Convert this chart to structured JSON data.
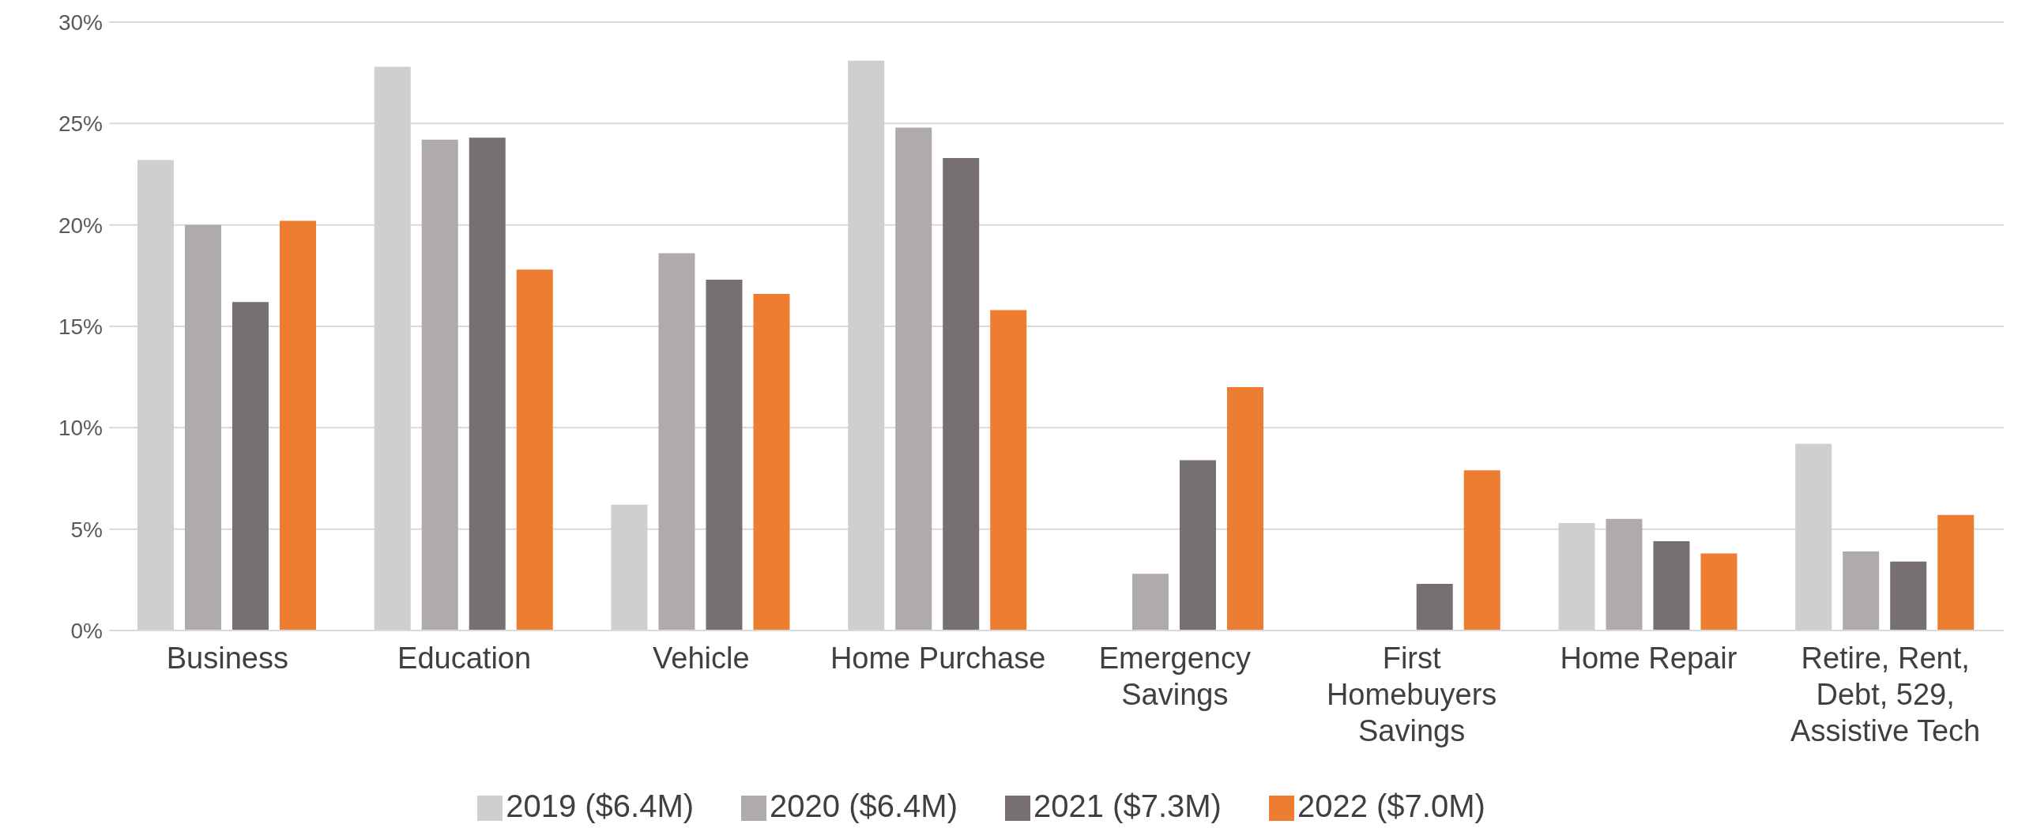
{
  "chart_data": {
    "type": "bar",
    "categories": [
      "Business",
      "Education",
      "Vehicle",
      "Home Purchase",
      "Emergency Savings",
      "First Homebuyers Savings",
      "Home Repair",
      "Retire, Rent, Debt, 529, Assistive Tech"
    ],
    "series": [
      {
        "name": "2019 ($6.4M)",
        "color": "#d0cecf",
        "values": [
          23.2,
          27.8,
          6.2,
          28.1,
          null,
          null,
          5.3,
          9.2
        ]
      },
      {
        "name": "2020 ($6.4M)",
        "color": "#afabaa",
        "values": [
          20.0,
          24.2,
          18.6,
          24.8,
          2.8,
          null,
          5.5,
          3.9
        ]
      },
      {
        "name": "2021 ($7.3M)",
        "color": "#767170",
        "values": [
          16.2,
          24.3,
          17.3,
          23.3,
          8.4,
          2.3,
          4.4,
          3.4
        ]
      },
      {
        "name": "2022 ($7.0M)",
        "color": "#ed7d31",
        "values": [
          20.2,
          17.8,
          16.6,
          15.8,
          12.0,
          7.9,
          3.8,
          5.7
        ]
      }
    ],
    "ylim": [
      0,
      30
    ],
    "yticks": [
      {
        "value": 0,
        "label": "0%"
      },
      {
        "value": 5,
        "label": "5%"
      },
      {
        "value": 10,
        "label": "10%"
      },
      {
        "value": 15,
        "label": "15%"
      },
      {
        "value": 20,
        "label": "20%"
      },
      {
        "value": 25,
        "label": "25%"
      },
      {
        "value": 30,
        "label": "30%"
      }
    ],
    "grid": "y",
    "legend": "bottom"
  }
}
